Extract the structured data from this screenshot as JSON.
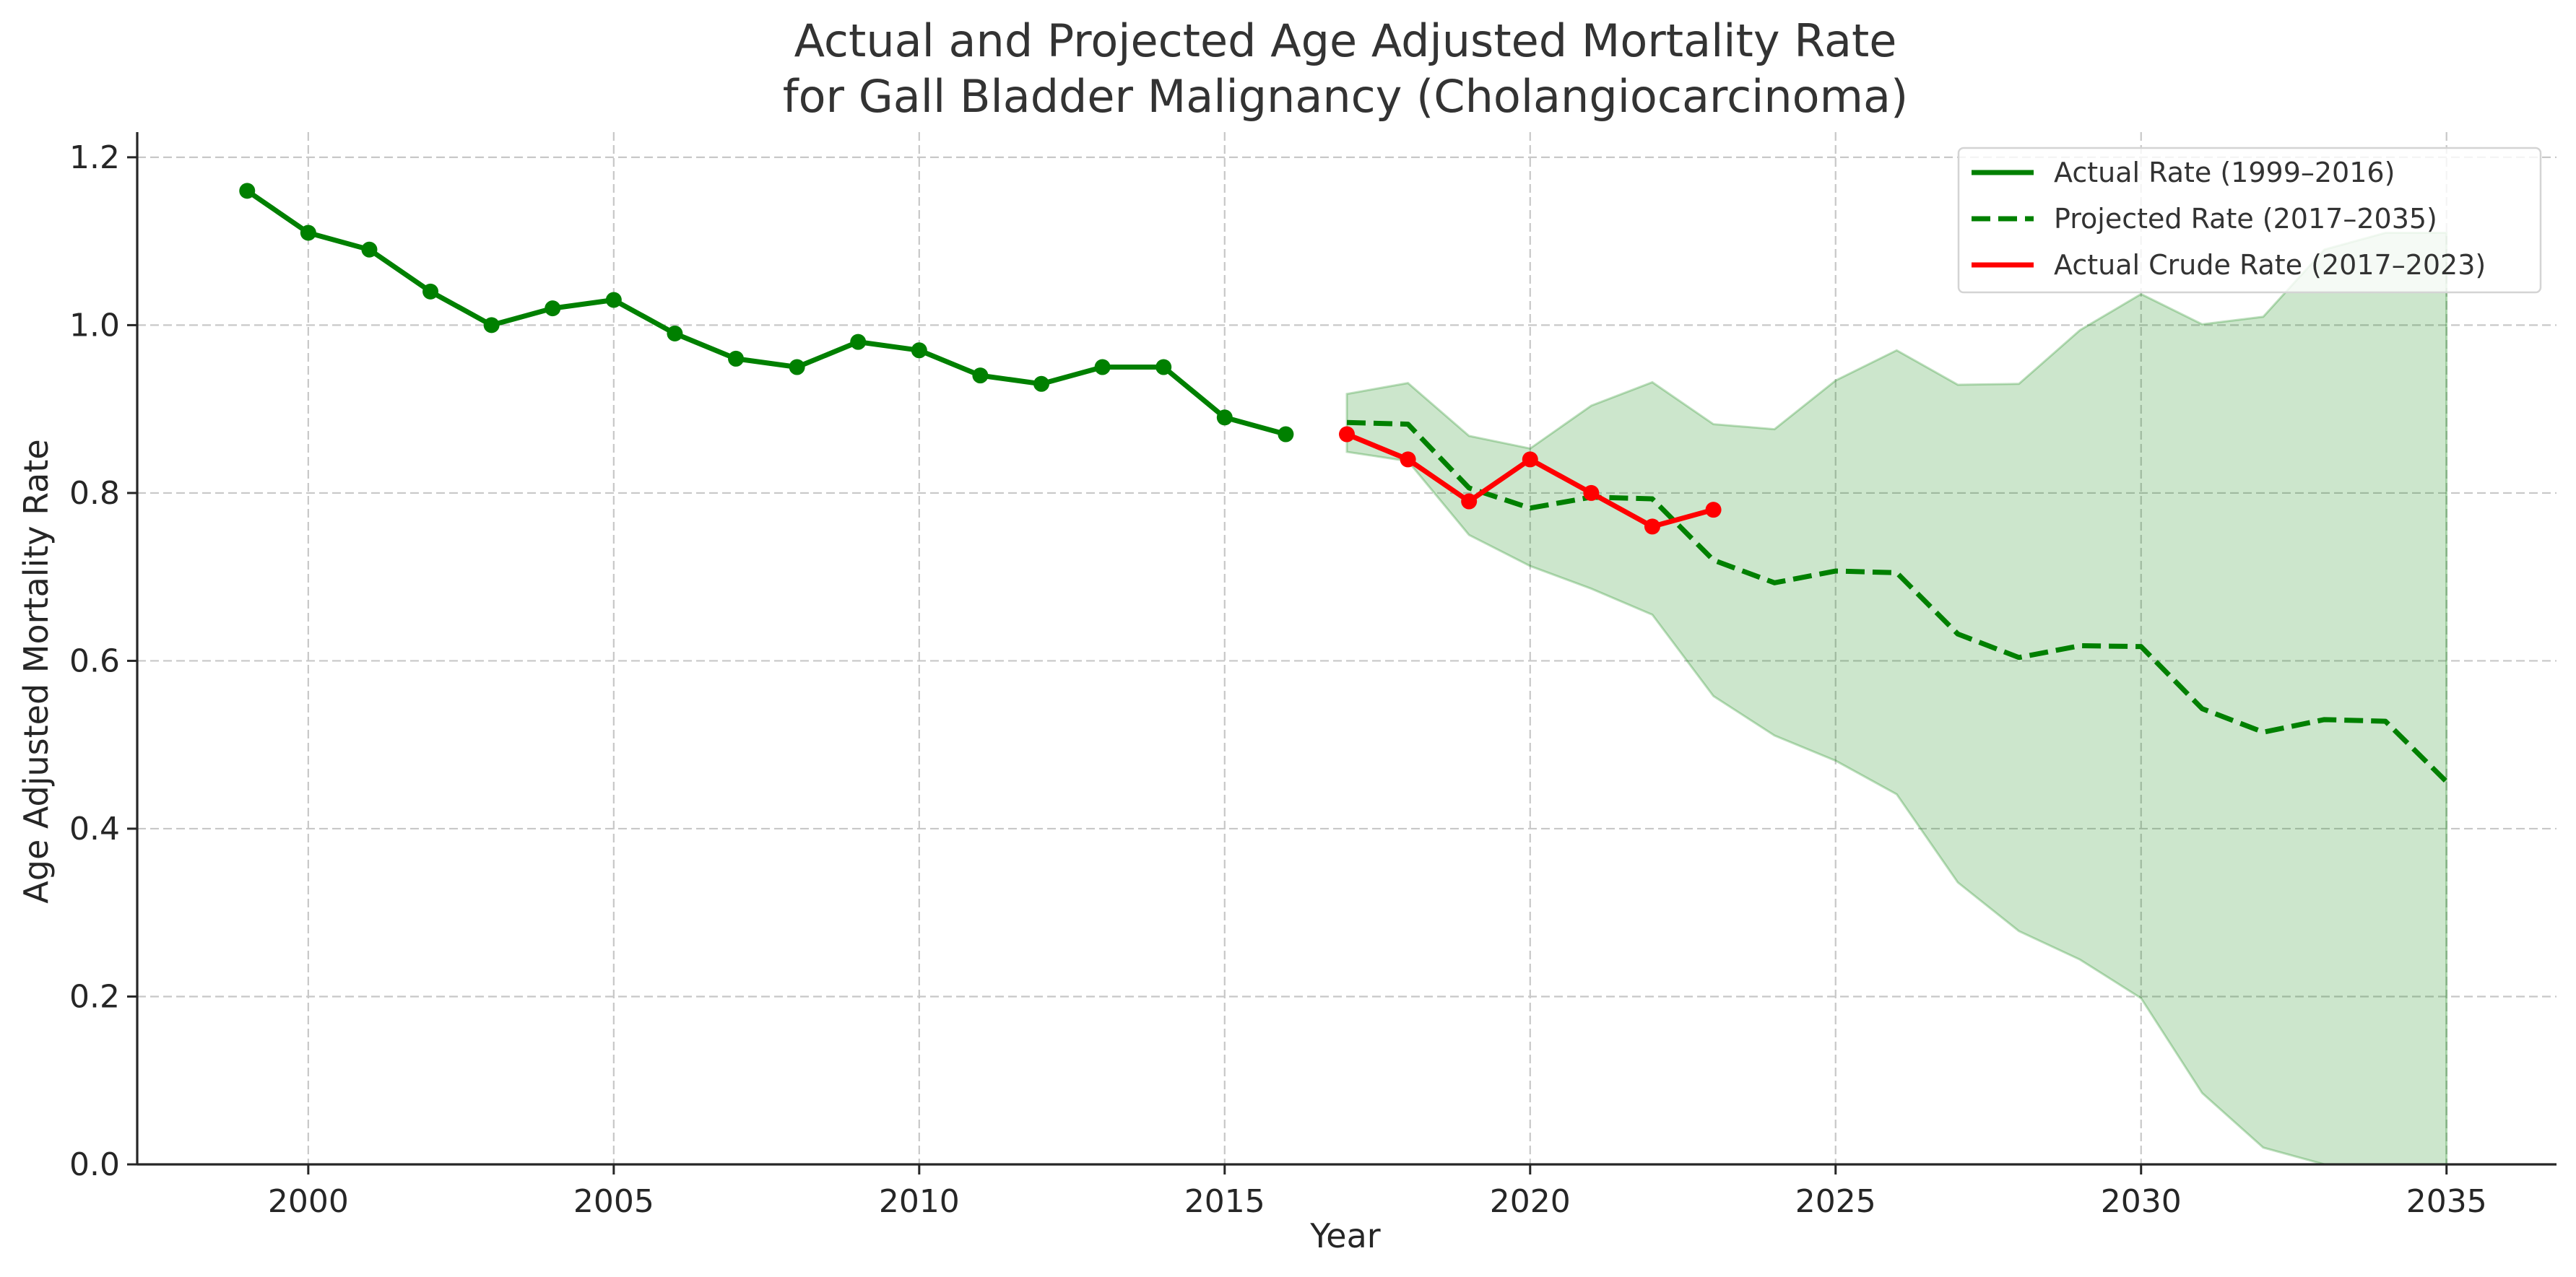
{
  "chart_data": {
    "type": "line",
    "title_lines": [
      "Actual and Projected Age Adjusted Mortality Rate",
      "for Gall Bladder Malignancy (Cholangiocarcinoma)"
    ],
    "xlabel": "Year",
    "ylabel": "Age Adjusted Mortality Rate",
    "xlim": [
      1997.2,
      2036.8
    ],
    "ylim": [
      0,
      1.23
    ],
    "x_ticks": [
      2000,
      2005,
      2010,
      2015,
      2020,
      2025,
      2030,
      2035
    ],
    "y_ticks": [
      0.0,
      0.2,
      0.4,
      0.6,
      0.8,
      1.0,
      1.2
    ],
    "y_tick_labels": [
      "0.0",
      "0.2",
      "0.4",
      "0.6",
      "0.8",
      "1.0",
      "1.2"
    ],
    "grid": true,
    "legend_position": "top-right",
    "series": [
      {
        "name": "Actual Rate (1999–2016)",
        "color": "#008000",
        "style": "solid",
        "markers": true,
        "x": [
          1999,
          2000,
          2001,
          2002,
          2003,
          2004,
          2005,
          2006,
          2007,
          2008,
          2009,
          2010,
          2011,
          2012,
          2013,
          2014,
          2015,
          2016
        ],
        "y": [
          1.16,
          1.11,
          1.09,
          1.04,
          1.0,
          1.02,
          1.03,
          0.99,
          0.96,
          0.95,
          0.98,
          0.97,
          0.94,
          0.93,
          0.95,
          0.95,
          0.89,
          0.87
        ]
      },
      {
        "name": "Projected Rate (2017–2035)",
        "color": "#008000",
        "style": "dashed",
        "markers": false,
        "x": [
          2017,
          2018,
          2019,
          2020,
          2021,
          2022,
          2023,
          2024,
          2025,
          2026,
          2027,
          2028,
          2029,
          2030,
          2031,
          2032,
          2033,
          2034,
          2035
        ],
        "y": [
          0.884,
          0.882,
          0.806,
          0.782,
          0.795,
          0.793,
          0.72,
          0.693,
          0.707,
          0.705,
          0.632,
          0.604,
          0.618,
          0.617,
          0.543,
          0.515,
          0.53,
          0.528,
          0.456
        ]
      },
      {
        "name": "Actual Crude Rate (2017–2023)",
        "color": "#ff0000",
        "style": "solid",
        "markers": true,
        "x": [
          2017,
          2018,
          2019,
          2020,
          2021,
          2022,
          2023
        ],
        "y": [
          0.87,
          0.84,
          0.79,
          0.84,
          0.8,
          0.76,
          0.78
        ]
      }
    ],
    "confidence_band": {
      "series": "Projected Rate (2017–2035)",
      "color": "#008000",
      "x": [
        2017,
        2018,
        2019,
        2020,
        2021,
        2022,
        2023,
        2024,
        2025,
        2026,
        2027,
        2028,
        2029,
        2030,
        2031,
        2032,
        2033,
        2034,
        2035
      ],
      "upper": [
        0.918,
        0.931,
        0.868,
        0.853,
        0.904,
        0.932,
        0.882,
        0.876,
        0.934,
        0.97,
        0.929,
        0.93,
        0.994,
        1.037,
        1.001,
        1.01,
        1.09,
        1.11,
        1.11
      ],
      "lower": [
        0.849,
        0.838,
        0.75,
        0.713,
        0.686,
        0.655,
        0.558,
        0.511,
        0.481,
        0.441,
        0.336,
        0.278,
        0.244,
        0.198,
        0.085,
        0.02,
        -0.02,
        -0.02,
        -0.02
      ]
    }
  }
}
